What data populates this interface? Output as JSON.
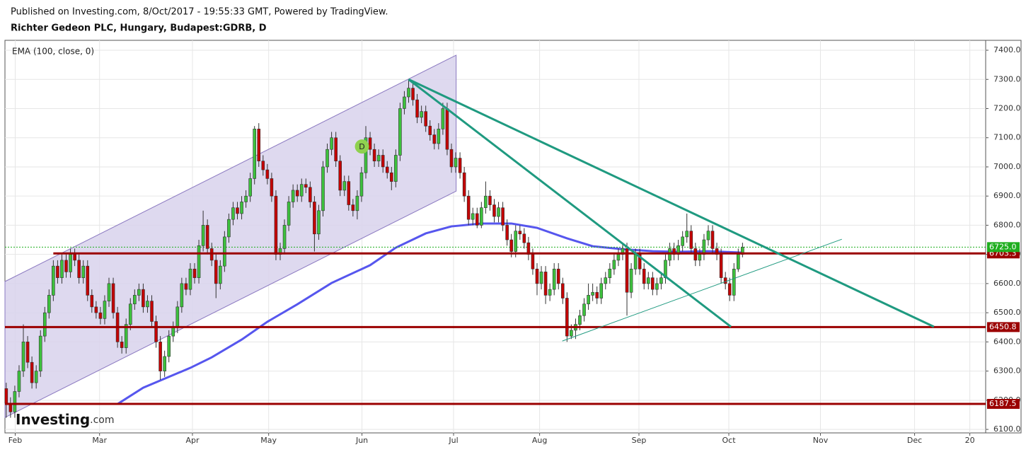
{
  "header": {
    "published": "Published on Investing.com, 8/Oct/2017 - 19:55:33 GMT, Powered by TradingView.",
    "instrument": "Richter Gedeon PLC, Hungary, Budapest:GDRB, D"
  },
  "brand": {
    "name": "Investing",
    "suffix": ".com"
  },
  "chart_data": {
    "type": "candlestick",
    "grid": true,
    "xlim": [
      -0.3,
      228.8
    ],
    "ylim": [
      6088,
      7434
    ],
    "xticks": [
      {
        "value": 2.1,
        "label": "Feb"
      },
      {
        "value": 21.8,
        "label": "Mar"
      },
      {
        "value": 43.5,
        "label": "Apr"
      },
      {
        "value": 61.3,
        "label": "May"
      },
      {
        "value": 83.1,
        "label": "Jun"
      },
      {
        "value": 104.5,
        "label": "Jul"
      },
      {
        "value": 124.6,
        "label": "Aug"
      },
      {
        "value": 147.8,
        "label": "Sep"
      },
      {
        "value": 168.8,
        "label": "Oct"
      },
      {
        "value": 190.2,
        "label": "Nov"
      },
      {
        "value": 212.2,
        "label": "Dec"
      },
      {
        "value": 225.1,
        "label": "20"
      }
    ],
    "yticks": [
      {
        "value": 6100,
        "label": "6100.0"
      },
      {
        "value": 6200,
        "label": "6200.0"
      },
      {
        "value": 6300,
        "label": "6300.0"
      },
      {
        "value": 6400,
        "label": "6400.0"
      },
      {
        "value": 6500,
        "label": "6500.0"
      },
      {
        "value": 6600,
        "label": "6600.0"
      },
      {
        "value": 6700,
        "label": "6700.0"
      },
      {
        "value": 6800,
        "label": "6800.0"
      },
      {
        "value": 6900,
        "label": "6900.0"
      },
      {
        "value": 7000,
        "label": "7000.0"
      },
      {
        "value": 7100,
        "label": "7100.0"
      },
      {
        "value": 7200,
        "label": "7200.0"
      },
      {
        "value": 7300,
        "label": "7300.0"
      },
      {
        "value": 7400,
        "label": "7400.0"
      }
    ],
    "candles": {
      "up_color": "#3dc13d",
      "down_color": "#c40000",
      "open": [
        6240,
        6190,
        6160,
        6230,
        6300,
        6400,
        6330,
        6260,
        6300,
        6420,
        6500,
        6560,
        6660,
        6620,
        6680,
        6640,
        6700,
        6680,
        6620,
        6660,
        6560,
        6520,
        6500,
        6480,
        6540,
        6600,
        6500,
        6400,
        6380,
        6460,
        6530,
        6560,
        6580,
        6520,
        6540,
        6470,
        6400,
        6300,
        6350,
        6420,
        6450,
        6520,
        6600,
        6580,
        6650,
        6620,
        6730,
        6800,
        6720,
        6680,
        6600,
        6660,
        6760,
        6820,
        6860,
        6840,
        6880,
        6900,
        6960,
        7130,
        7020,
        6990,
        6960,
        6900,
        6700,
        6720,
        6800,
        6880,
        6920,
        6900,
        6940,
        6930,
        6880,
        6770,
        6850,
        7000,
        7060,
        7100,
        7020,
        6920,
        6950,
        6870,
        6850,
        6900,
        6980,
        7100,
        7060,
        7020,
        7040,
        7000,
        6980,
        6950,
        7040,
        7200,
        7240,
        7270,
        7230,
        7170,
        7190,
        7140,
        7110,
        7080,
        7130,
        7200,
        7060,
        7000,
        7030,
        6980,
        6900,
        6820,
        6840,
        6800,
        6860,
        6900,
        6870,
        6830,
        6860,
        6800,
        6750,
        6710,
        6780,
        6770,
        6740,
        6700,
        6650,
        6600,
        6640,
        6560,
        6580,
        6650,
        6600,
        6550,
        6420,
        6440,
        6460,
        6490,
        6530,
        6560,
        6570,
        6550,
        6600,
        6620,
        6650,
        6680,
        6700,
        6720,
        6570,
        6650,
        6700,
        6650,
        6600,
        6620,
        6580,
        6600,
        6620,
        6680,
        6720,
        6700,
        6730,
        6760,
        6780,
        6720,
        6680,
        6700,
        6750,
        6780,
        6720,
        6700,
        6620,
        6600,
        6560,
        6650,
        6700
      ],
      "high": [
        6260,
        6210,
        6250,
        6320,
        6460,
        6420,
        6350,
        6320,
        6440,
        6520,
        6580,
        6680,
        6680,
        6700,
        6700,
        6720,
        6720,
        6700,
        6680,
        6680,
        6580,
        6540,
        6520,
        6560,
        6620,
        6620,
        6520,
        6420,
        6480,
        6550,
        6580,
        6600,
        6600,
        6560,
        6560,
        6490,
        6420,
        6370,
        6440,
        6470,
        6540,
        6620,
        6620,
        6670,
        6670,
        6750,
        6850,
        6820,
        6740,
        6700,
        6680,
        6780,
        6840,
        6880,
        6880,
        6900,
        6920,
        6980,
        7140,
        7150,
        7040,
        7010,
        6980,
        6920,
        6740,
        6820,
        6900,
        6940,
        6940,
        6960,
        6960,
        6950,
        6900,
        6870,
        7020,
        7080,
        7120,
        7120,
        7040,
        6970,
        6970,
        6890,
        6920,
        7000,
        7140,
        7120,
        7080,
        7060,
        7060,
        7020,
        7000,
        7060,
        7220,
        7260,
        7300,
        7290,
        7250,
        7210,
        7210,
        7160,
        7130,
        7150,
        7220,
        7220,
        7080,
        7050,
        7050,
        7000,
        6920,
        6860,
        6860,
        6880,
        6950,
        6920,
        6890,
        6880,
        6880,
        6820,
        6770,
        6800,
        6800,
        6790,
        6760,
        6720,
        6670,
        6660,
        6660,
        6600,
        6670,
        6670,
        6620,
        6570,
        6460,
        6480,
        6510,
        6550,
        6600,
        6600,
        6590,
        6620,
        6640,
        6670,
        6700,
        6720,
        6740,
        6740,
        6670,
        6720,
        6720,
        6670,
        6640,
        6640,
        6620,
        6640,
        6700,
        6740,
        6740,
        6750,
        6780,
        6840,
        6800,
        6740,
        6720,
        6770,
        6800,
        6800,
        6740,
        6720,
        6640,
        6620,
        6670,
        6720,
        6740
      ],
      "low": [
        6140,
        6140,
        6140,
        6210,
        6280,
        6310,
        6240,
        6240,
        6280,
        6400,
        6480,
        6540,
        6600,
        6600,
        6620,
        6620,
        6660,
        6600,
        6600,
        6540,
        6500,
        6480,
        6460,
        6460,
        6520,
        6480,
        6380,
        6360,
        6360,
        6440,
        6510,
        6540,
        6500,
        6500,
        6450,
        6380,
        6270,
        6280,
        6330,
        6400,
        6430,
        6500,
        6560,
        6560,
        6600,
        6600,
        6710,
        6700,
        6660,
        6550,
        6580,
        6640,
        6740,
        6800,
        6820,
        6820,
        6860,
        6880,
        6940,
        7000,
        6970,
        6940,
        6880,
        6680,
        6680,
        6700,
        6780,
        6860,
        6880,
        6880,
        6910,
        6860,
        6710,
        6750,
        6830,
        6980,
        7040,
        7000,
        6900,
        6900,
        6850,
        6830,
        6820,
        6880,
        6960,
        7040,
        7000,
        7000,
        6980,
        6960,
        6920,
        6930,
        7020,
        7180,
        7220,
        7210,
        7150,
        7150,
        7120,
        7090,
        7060,
        7060,
        7110,
        7040,
        6980,
        6980,
        6960,
        6880,
        6800,
        6800,
        6790,
        6790,
        6840,
        6850,
        6810,
        6810,
        6780,
        6730,
        6690,
        6690,
        6750,
        6720,
        6680,
        6630,
        6560,
        6580,
        6530,
        6540,
        6560,
        6580,
        6530,
        6400,
        6410,
        6410,
        6440,
        6470,
        6510,
        6540,
        6530,
        6530,
        6580,
        6600,
        6630,
        6660,
        6680,
        6490,
        6550,
        6630,
        6630,
        6580,
        6580,
        6560,
        6560,
        6580,
        6600,
        6660,
        6680,
        6680,
        6710,
        6740,
        6700,
        6660,
        6660,
        6680,
        6730,
        6700,
        6680,
        6600,
        6580,
        6540,
        6540,
        6640,
        6690
      ],
      "close": [
        6190,
        6160,
        6230,
        6300,
        6400,
        6330,
        6260,
        6300,
        6420,
        6500,
        6560,
        6660,
        6620,
        6680,
        6640,
        6700,
        6680,
        6620,
        6660,
        6560,
        6520,
        6500,
        6480,
        6540,
        6600,
        6500,
        6400,
        6380,
        6460,
        6530,
        6560,
        6580,
        6520,
        6540,
        6470,
        6400,
        6300,
        6350,
        6420,
        6450,
        6520,
        6600,
        6580,
        6650,
        6620,
        6730,
        6800,
        6720,
        6680,
        6600,
        6660,
        6760,
        6820,
        6860,
        6840,
        6880,
        6900,
        6960,
        7130,
        7020,
        6990,
        6960,
        6900,
        6700,
        6720,
        6800,
        6880,
        6920,
        6900,
        6940,
        6930,
        6880,
        6770,
        6850,
        7000,
        7060,
        7100,
        7020,
        6920,
        6950,
        6870,
        6850,
        6900,
        6980,
        7100,
        7060,
        7020,
        7040,
        7000,
        6980,
        6950,
        7040,
        7200,
        7240,
        7270,
        7230,
        7170,
        7190,
        7140,
        7110,
        7080,
        7130,
        7200,
        7060,
        7000,
        7030,
        6980,
        6900,
        6820,
        6840,
        6800,
        6860,
        6900,
        6870,
        6830,
        6860,
        6800,
        6750,
        6710,
        6780,
        6770,
        6740,
        6700,
        6650,
        6600,
        6640,
        6560,
        6580,
        6650,
        6600,
        6550,
        6420,
        6440,
        6460,
        6490,
        6530,
        6560,
        6570,
        6550,
        6600,
        6620,
        6650,
        6680,
        6700,
        6720,
        6570,
        6650,
        6700,
        6650,
        6600,
        6620,
        6580,
        6600,
        6620,
        6680,
        6720,
        6700,
        6730,
        6760,
        6780,
        6720,
        6680,
        6700,
        6750,
        6780,
        6720,
        6700,
        6620,
        6600,
        6560,
        6650,
        6700,
        6725
      ]
    },
    "ema": {
      "name": "EMA (100, close, 0)",
      "color": "#5656ee",
      "x": [
        26,
        32,
        43,
        48,
        55,
        61,
        68,
        76,
        85,
        91,
        98,
        104,
        111,
        118,
        124,
        131,
        137,
        144,
        151,
        157,
        164,
        172
      ],
      "values": [
        6187,
        6243,
        6311,
        6347,
        6408,
        6469,
        6529,
        6602,
        6663,
        6723,
        6772,
        6796,
        6806,
        6806,
        6791,
        6755,
        6728,
        6718,
        6711,
        6709,
        6711,
        6706
      ]
    },
    "channel": {
      "color": "#d8d2ec",
      "edge": "#8a78c0",
      "x": [
        -0.3,
        105.1
      ],
      "upper": [
        6607,
        7383
      ],
      "lower": [
        6141,
        6917
      ]
    },
    "trendlines": [
      {
        "color": "#1f9a80",
        "width": 3,
        "x": [
          94,
          169.3
        ],
        "y": [
          7300,
          6452
        ]
      },
      {
        "color": "#1f9a80",
        "width": 3,
        "x": [
          94,
          216.7
        ],
        "y": [
          7300,
          6452
        ]
      },
      {
        "color": "#1f9a80",
        "width": 1,
        "x": [
          129.9,
          195.2
        ],
        "y": [
          6403,
          6752
        ]
      }
    ],
    "levels": [
      {
        "value": 6703.3,
        "label": "6703.3",
        "start": 11,
        "color": "#9b0000"
      },
      {
        "value": 6450.8,
        "label": "6450.8",
        "start": -0.3,
        "color": "#9b0000"
      },
      {
        "value": 6187.5,
        "label": "6187.5",
        "start": -0.3,
        "color": "#9b0000"
      }
    ],
    "last_price": {
      "value": 6725.0,
      "label": "6725.0",
      "color": "#1fae1f"
    },
    "markers": [
      {
        "x": 83.1,
        "y": 7070,
        "label": "D",
        "color": "#8fd14f"
      }
    ]
  }
}
